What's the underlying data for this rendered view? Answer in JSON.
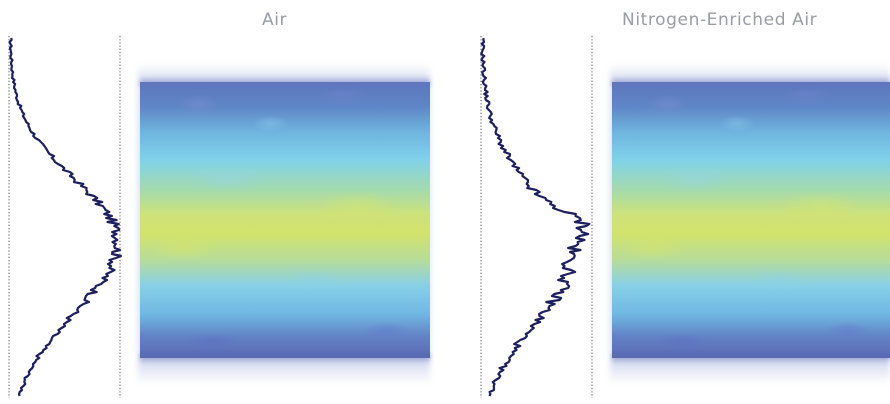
{
  "panels": [
    {
      "id": "air",
      "title": "Air"
    },
    {
      "id": "nea",
      "title": "Nitrogen-Enriched Air"
    }
  ],
  "colors": {
    "title_text": "#9a9ca3",
    "profile_line": "#1c1f5c",
    "baseline_dots": "#6a6d78",
    "beam_edge_blue": "#5d76bd",
    "beam_mid_cyan": "#7fd2ea",
    "beam_core_yellow": "#d2e36c"
  }
}
